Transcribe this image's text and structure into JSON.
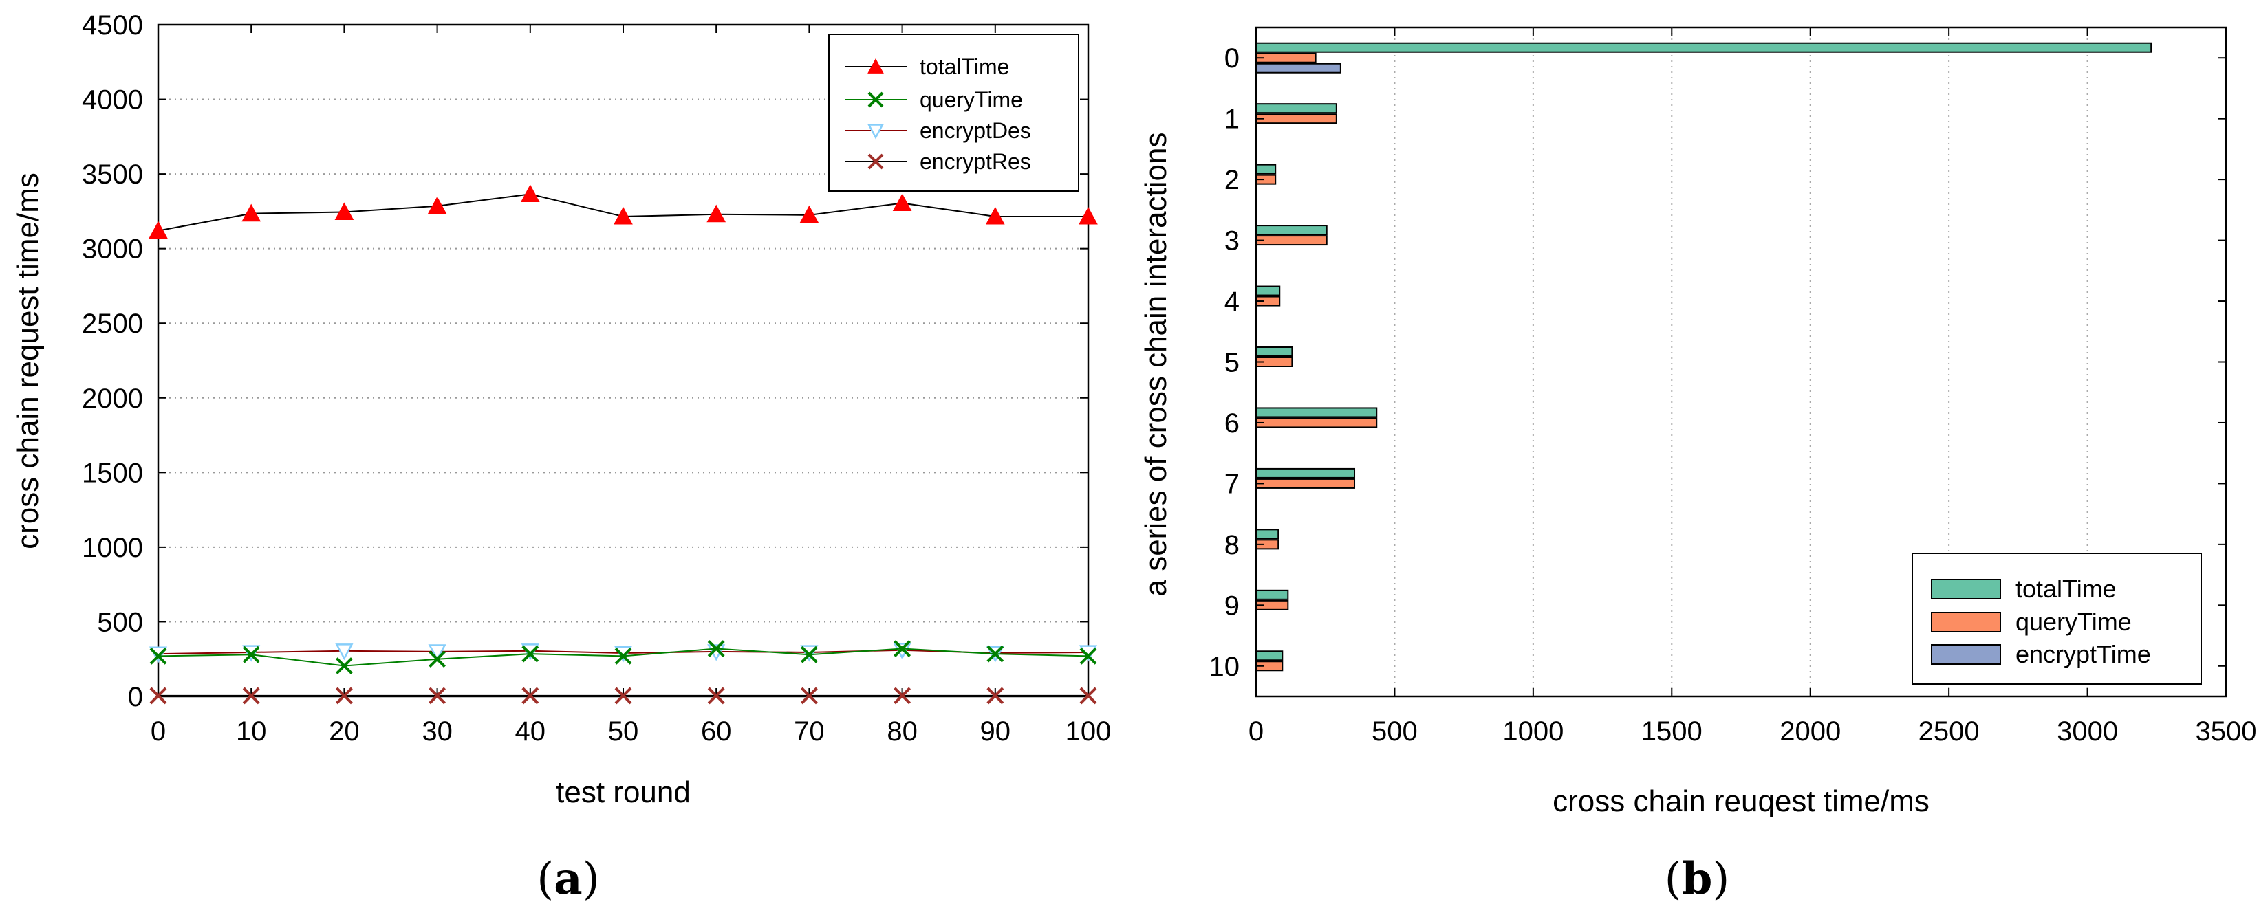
{
  "chart_data": [
    {
      "type": "line",
      "panel_label": "(a)",
      "panel_letter": "a",
      "xlabel": "test round",
      "ylabel": "cross chain request time/ms",
      "x": [
        0,
        10,
        20,
        30,
        40,
        50,
        60,
        70,
        80,
        90,
        100
      ],
      "xticks": [
        0,
        10,
        20,
        30,
        40,
        50,
        60,
        70,
        80,
        90,
        100
      ],
      "xlim": [
        0,
        100
      ],
      "ylim": [
        0,
        4500
      ],
      "yticks": [
        0,
        500,
        1000,
        1500,
        2000,
        2500,
        3000,
        3500,
        4000,
        4500
      ],
      "grid": "horizontal dotted",
      "legend_position": "top-right",
      "series": [
        {
          "name": "totalTime",
          "marker": "triangle-up",
          "line_color": "#000000",
          "marker_color": "#ff0000",
          "values": [
            3120,
            3235,
            3245,
            3285,
            3365,
            3215,
            3230,
            3225,
            3305,
            3215,
            3215
          ]
        },
        {
          "name": "queryTime",
          "marker": "x",
          "line_color": "#008000",
          "marker_color": "#008000",
          "values": [
            270,
            280,
            205,
            250,
            285,
            270,
            320,
            280,
            320,
            285,
            270
          ]
        },
        {
          "name": "encryptDes",
          "marker": "triangle-down",
          "line_color": "#8b0000",
          "marker_color": "#87cefa",
          "values": [
            285,
            295,
            305,
            300,
            305,
            290,
            300,
            295,
            310,
            290,
            295
          ]
        },
        {
          "name": "encryptRes",
          "marker": "x",
          "line_color": "#000000",
          "marker_color": "#a0302a",
          "values": [
            5,
            5,
            5,
            5,
            5,
            5,
            5,
            5,
            5,
            5,
            5
          ]
        }
      ]
    },
    {
      "type": "bar",
      "orientation": "horizontal",
      "panel_label": "(b)",
      "panel_letter": "b",
      "xlabel": "cross chain reuqest time/ms",
      "ylabel": "a series of cross chain interactions",
      "categories": [
        "0",
        "1",
        "2",
        "3",
        "4",
        "5",
        "6",
        "7",
        "8",
        "9",
        "10"
      ],
      "xlim": [
        0,
        3500
      ],
      "xticks": [
        0,
        500,
        1000,
        1500,
        2000,
        2500,
        3000,
        3500
      ],
      "grid": "vertical dotted",
      "legend_position": "bottom-right",
      "series": [
        {
          "name": "totalTime",
          "color": "#66c2a5",
          "values": [
            3230,
            290,
            70,
            255,
            85,
            130,
            435,
            355,
            80,
            115,
            95
          ]
        },
        {
          "name": "queryTime",
          "color": "#fc8d62",
          "values": [
            215,
            290,
            70,
            255,
            85,
            130,
            435,
            355,
            80,
            115,
            95
          ]
        },
        {
          "name": "encryptTime",
          "color": "#8da0cb",
          "values": [
            305,
            0,
            0,
            0,
            0,
            0,
            0,
            0,
            0,
            0,
            0
          ]
        }
      ]
    }
  ]
}
